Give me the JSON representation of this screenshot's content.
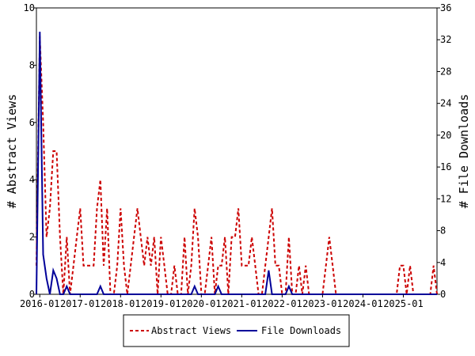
{
  "chart_data": {
    "type": "line",
    "x_ticks": [
      "2016-01",
      "2017-01",
      "2018-01",
      "2019-01",
      "2020-01",
      "2021-01",
      "2022-01",
      "2023-01",
      "2024-01",
      "2025-01"
    ],
    "y_left": {
      "label": "# Abstract Views",
      "ticks": [
        "0",
        "2",
        "4",
        "6",
        "8",
        "10"
      ],
      "lim": [
        0,
        10
      ]
    },
    "y_right": {
      "label": "# File Downloads",
      "ticks": [
        "0",
        "4",
        "8",
        "12",
        "16",
        "20",
        "24",
        "28",
        "32",
        "36"
      ],
      "lim": [
        0,
        36
      ]
    },
    "x_range": [
      "2015-12",
      "2025-11"
    ],
    "grid": false,
    "legend_position": "bottom",
    "series": [
      {
        "name": "Abstract Views",
        "axis": "left",
        "color": "#cc0000",
        "style": "dashed",
        "x": [
          "2015-12",
          "2016-01",
          "2016-02",
          "2016-03",
          "2016-04",
          "2016-05",
          "2016-06",
          "2016-07",
          "2016-08",
          "2016-09",
          "2016-10",
          "2016-11",
          "2016-12",
          "2017-01",
          "2017-02",
          "2017-03",
          "2017-04",
          "2017-05",
          "2017-06",
          "2017-07",
          "2017-08",
          "2017-09",
          "2017-10",
          "2017-11",
          "2017-12",
          "2018-01",
          "2018-02",
          "2018-03",
          "2018-04",
          "2018-05",
          "2018-06",
          "2018-07",
          "2018-08",
          "2018-09",
          "2018-10",
          "2018-11",
          "2018-12",
          "2019-01",
          "2019-02",
          "2019-03",
          "2019-04",
          "2019-05",
          "2019-06",
          "2019-07",
          "2019-08",
          "2019-09",
          "2019-10",
          "2019-11",
          "2019-12",
          "2020-01",
          "2020-02",
          "2020-03",
          "2020-04",
          "2020-05",
          "2020-06",
          "2020-07",
          "2020-08",
          "2020-09",
          "2020-10",
          "2020-11",
          "2020-12",
          "2021-01",
          "2021-02",
          "2021-03",
          "2021-04",
          "2021-05",
          "2021-06",
          "2021-07",
          "2021-08",
          "2021-09",
          "2021-10",
          "2021-11",
          "2021-12",
          "2022-01",
          "2022-02",
          "2022-03",
          "2022-04",
          "2022-05",
          "2022-06",
          "2022-07",
          "2022-08",
          "2022-09",
          "2022-10",
          "2022-11",
          "2022-12",
          "2023-01",
          "2023-02",
          "2023-03",
          "2023-04",
          "2023-05",
          "2023-06",
          "2023-07",
          "2023-08",
          "2023-09",
          "2023-10",
          "2023-11",
          "2023-12",
          "2024-01",
          "2024-02",
          "2024-03",
          "2024-04",
          "2024-05",
          "2024-06",
          "2024-07",
          "2024-08",
          "2024-09",
          "2024-10",
          "2024-11",
          "2024-12",
          "2025-01",
          "2025-02",
          "2025-03",
          "2025-04",
          "2025-05",
          "2025-06",
          "2025-07",
          "2025-08",
          "2025-09",
          "2025-10",
          "2025-11"
        ],
        "values": [
          1,
          9,
          6,
          2,
          3,
          5,
          5,
          2,
          0,
          2,
          0,
          1,
          2,
          3,
          1,
          1,
          1,
          1,
          3,
          4,
          1,
          3,
          0,
          0,
          1,
          3,
          1,
          0,
          1,
          2,
          3,
          2,
          1,
          2,
          1,
          2,
          0,
          2,
          1,
          0,
          0,
          1,
          0,
          0,
          2,
          0,
          1,
          3,
          2,
          0,
          0,
          1,
          2,
          0,
          1,
          1,
          2,
          0,
          2,
          2,
          3,
          1,
          1,
          1,
          2,
          1,
          0,
          0,
          1,
          2,
          3,
          1,
          1,
          0,
          0,
          2,
          0,
          0,
          1,
          0,
          1,
          0,
          0,
          0,
          0,
          0,
          1,
          2,
          1,
          0,
          0,
          0,
          0,
          0,
          0,
          0,
          0,
          0,
          0,
          0,
          0,
          0,
          0,
          0,
          0,
          0,
          0,
          0,
          1,
          1,
          0,
          1,
          0,
          0,
          0,
          0,
          0,
          0,
          1,
          0
        ]
      },
      {
        "name": "File Downloads",
        "axis": "right",
        "color": "#000099",
        "style": "solid",
        "x": [
          "2015-12",
          "2016-01",
          "2016-02",
          "2016-03",
          "2016-04",
          "2016-05",
          "2016-06",
          "2016-07",
          "2016-08",
          "2016-09",
          "2016-10",
          "2016-11",
          "2016-12",
          "2017-01",
          "2017-02",
          "2017-03",
          "2017-04",
          "2017-05",
          "2017-06",
          "2017-07",
          "2017-08",
          "2017-09",
          "2017-10",
          "2017-11",
          "2017-12",
          "2018-01",
          "2018-02",
          "2018-03",
          "2018-04",
          "2018-05",
          "2018-06",
          "2018-07",
          "2018-08",
          "2018-09",
          "2018-10",
          "2018-11",
          "2018-12",
          "2019-01",
          "2019-02",
          "2019-03",
          "2019-04",
          "2019-05",
          "2019-06",
          "2019-07",
          "2019-08",
          "2019-09",
          "2019-10",
          "2019-11",
          "2019-12",
          "2020-01",
          "2020-02",
          "2020-03",
          "2020-04",
          "2020-05",
          "2020-06",
          "2020-07",
          "2020-08",
          "2020-09",
          "2020-10",
          "2020-11",
          "2020-12",
          "2021-01",
          "2021-02",
          "2021-03",
          "2021-04",
          "2021-05",
          "2021-06",
          "2021-07",
          "2021-08",
          "2021-09",
          "2021-10",
          "2021-11",
          "2021-12",
          "2022-01",
          "2022-02",
          "2022-03",
          "2022-04",
          "2022-05",
          "2022-06",
          "2022-07",
          "2022-08",
          "2022-09",
          "2022-10",
          "2022-11",
          "2022-12",
          "2023-01",
          "2023-02",
          "2023-03",
          "2023-04",
          "2023-05",
          "2023-06",
          "2023-07",
          "2023-08",
          "2023-09",
          "2023-10",
          "2023-11",
          "2023-12",
          "2024-01",
          "2024-02",
          "2024-03",
          "2024-04",
          "2024-05",
          "2024-06",
          "2024-07",
          "2024-08",
          "2024-09",
          "2024-10",
          "2024-11",
          "2024-12",
          "2025-01",
          "2025-02",
          "2025-03",
          "2025-04",
          "2025-05",
          "2025-06",
          "2025-07",
          "2025-08",
          "2025-09",
          "2025-10",
          "2025-11"
        ],
        "values": [
          0,
          33,
          5,
          2,
          0,
          3,
          2,
          0,
          0,
          1,
          0,
          0,
          0,
          0,
          0,
          0,
          0,
          0,
          0,
          1,
          0,
          0,
          0,
          0,
          0,
          0,
          0,
          0,
          0,
          0,
          0,
          0,
          0,
          0,
          0,
          0,
          0,
          0,
          0,
          0,
          0,
          0,
          0,
          0,
          0,
          0,
          0,
          1,
          0,
          0,
          0,
          0,
          0,
          0,
          1,
          0,
          0,
          0,
          0,
          0,
          0,
          0,
          0,
          0,
          0,
          0,
          0,
          0,
          0,
          3,
          0,
          0,
          0,
          0,
          0,
          1,
          0,
          0,
          0,
          0,
          0,
          0,
          0,
          0,
          0,
          0,
          0,
          0,
          0,
          0,
          0,
          0,
          0,
          0,
          0,
          0,
          0,
          0,
          0,
          0,
          0,
          0,
          0,
          0,
          0,
          0,
          0,
          0,
          0,
          0,
          0,
          0,
          0,
          0,
          0,
          0,
          0,
          0,
          0,
          0
        ]
      }
    ]
  }
}
